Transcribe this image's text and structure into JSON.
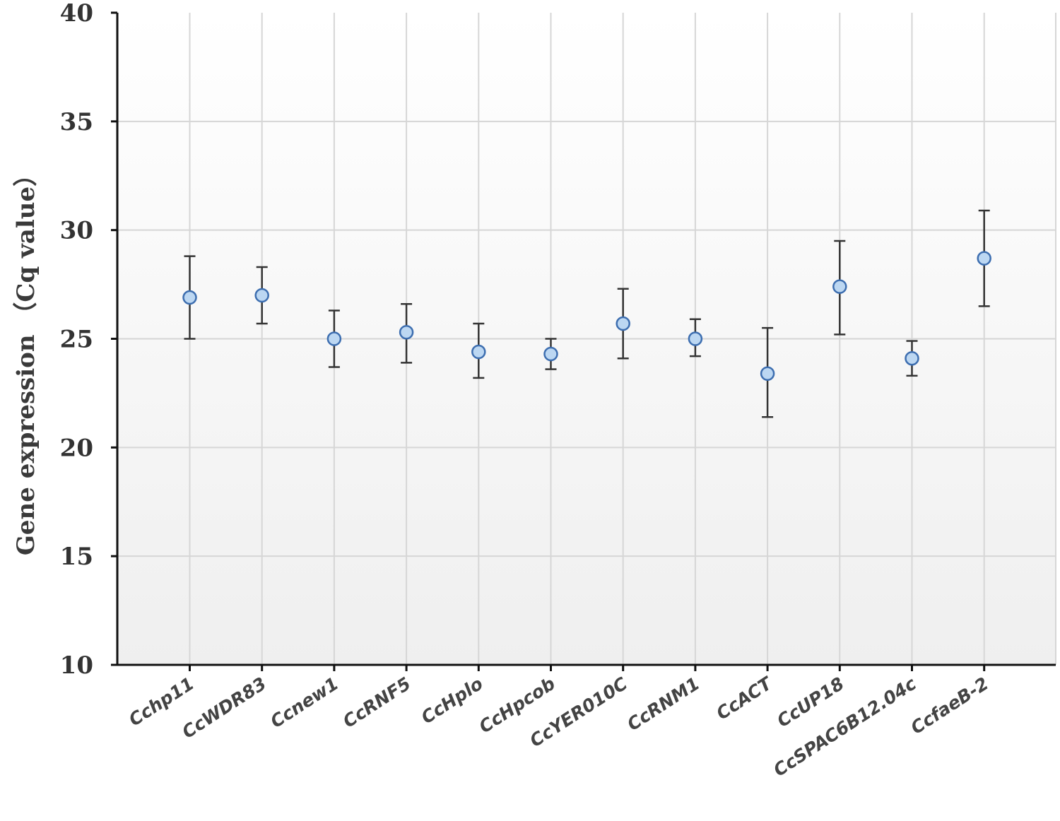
{
  "chart_data": {
    "type": "scatter",
    "ylabel": "Gene expression （Cq value）",
    "xlabel": "",
    "ylim": [
      10,
      40
    ],
    "yticks": [
      "10",
      "15",
      "20",
      "25",
      "30",
      "35",
      "40"
    ],
    "grid": true,
    "legend": "none",
    "categories": [
      "Cchp11",
      "CcWDR83",
      "Ccnew1",
      "CcRNF5",
      "CcHplo",
      "CcHpcob",
      "CcYER010C",
      "CcRNM1",
      "CcACT",
      "CcUP18",
      "CcSPAC6B12.04c",
      "CcfaeB-2"
    ],
    "series": [
      {
        "values": [
          26.9,
          27.0,
          25.0,
          25.3,
          24.4,
          24.3,
          25.7,
          25.0,
          23.4,
          27.4,
          24.1,
          28.7
        ],
        "err_low": [
          25.0,
          25.7,
          23.7,
          23.9,
          23.2,
          23.6,
          24.1,
          24.2,
          21.4,
          25.2,
          23.3,
          26.5
        ],
        "err_high": [
          28.8,
          28.3,
          26.3,
          26.6,
          25.7,
          25.0,
          27.3,
          25.9,
          25.5,
          29.5,
          24.9,
          30.9
        ]
      }
    ],
    "colors": {
      "marker_fill": "#bcd7f2",
      "marker_stroke": "#3d6eb0",
      "error_bar": "#333333",
      "grid": "#d6d6d6",
      "axis": "#111111",
      "plot_bg_top": "#ffffff",
      "plot_bg_bottom": "#efefef"
    }
  }
}
